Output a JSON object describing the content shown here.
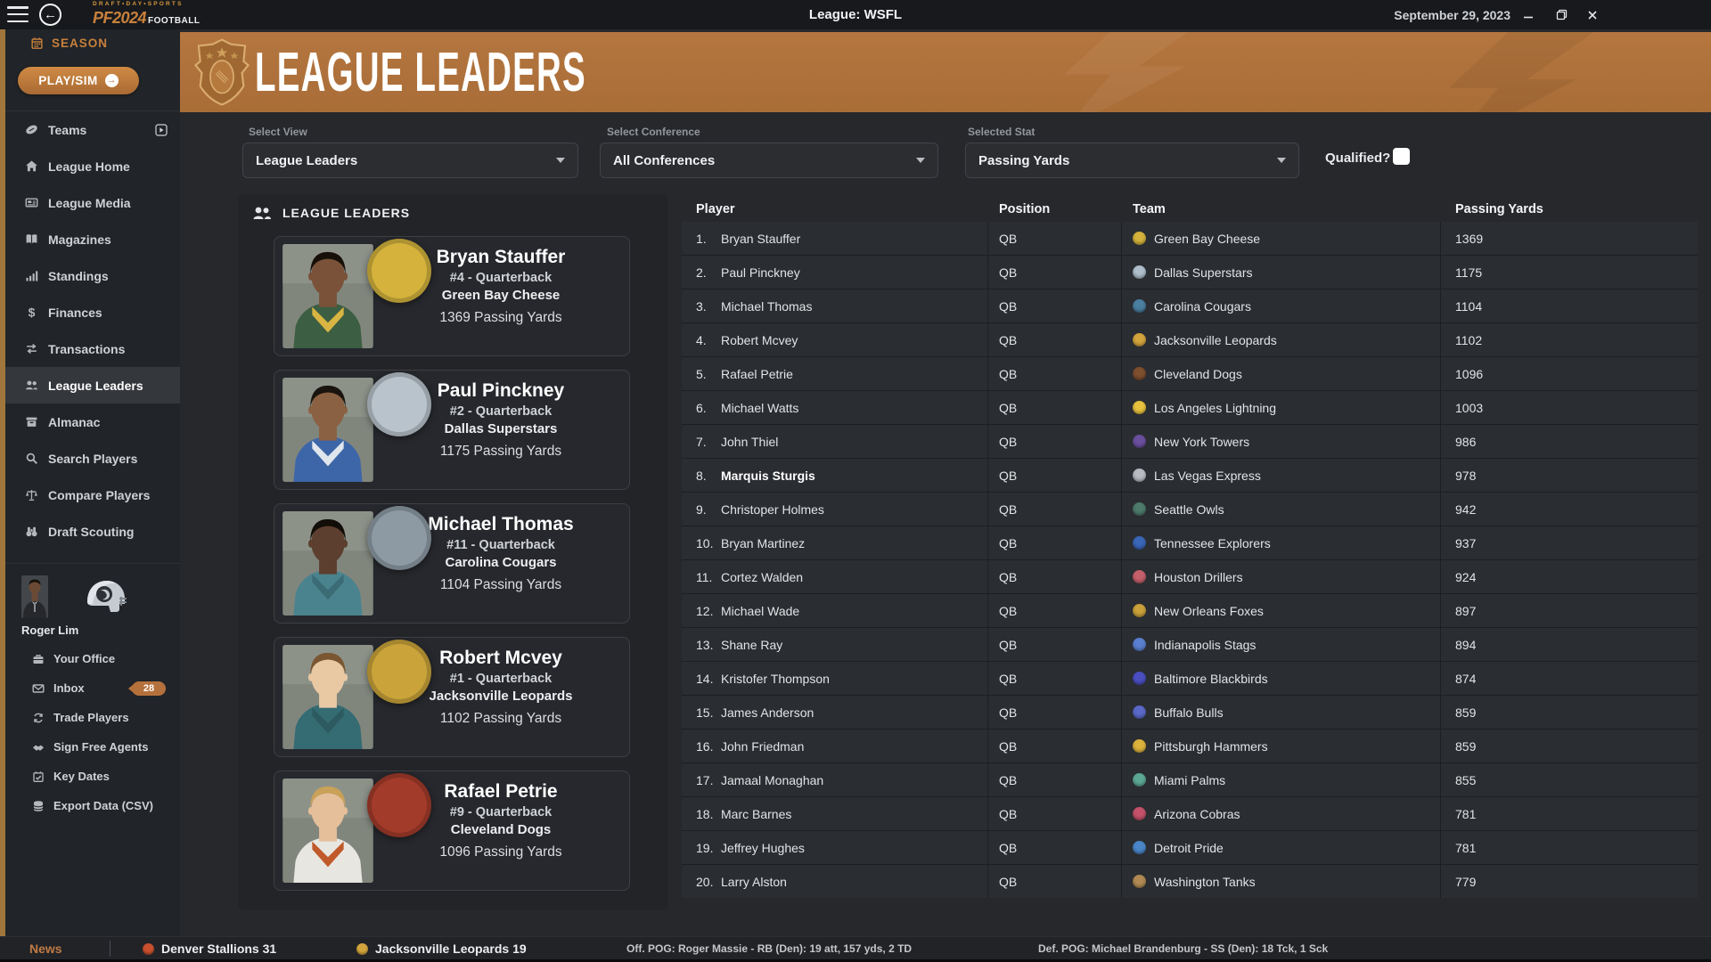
{
  "window": {
    "title": "League: WSFL",
    "date": "September 29, 2023",
    "logo_top": "DRAFT•DAY•SPORTS",
    "logo_main": "PF2024",
    "logo_sub": "FOOTBALL"
  },
  "sidebar": {
    "season_label": "SEASON",
    "play_label": "PLAY/SIM",
    "nav": [
      {
        "icon": "football",
        "label": "Teams"
      },
      {
        "icon": "home",
        "label": "League Home"
      },
      {
        "icon": "news-card",
        "label": "League Media"
      },
      {
        "icon": "book",
        "label": "Magazines"
      },
      {
        "icon": "bar-chart",
        "label": "Standings"
      },
      {
        "icon": "dollar",
        "label": "Finances"
      },
      {
        "icon": "swap-arrows",
        "label": "Transactions"
      },
      {
        "icon": "people",
        "label": "League Leaders"
      },
      {
        "icon": "archive",
        "label": "Almanac"
      },
      {
        "icon": "magnifier",
        "label": "Search Players"
      },
      {
        "icon": "scale",
        "label": "Compare Players"
      },
      {
        "icon": "binoculars",
        "label": "Draft Scouting"
      }
    ],
    "user_name": "Roger Lim",
    "office": [
      {
        "icon": "briefcase",
        "label": "Your Office"
      },
      {
        "icon": "envelope",
        "label": "Inbox",
        "badge": "28"
      },
      {
        "icon": "cycle-arrows",
        "label": "Trade Players"
      },
      {
        "icon": "handshake",
        "label": "Sign Free Agents"
      },
      {
        "icon": "calendar-check",
        "label": "Key Dates"
      },
      {
        "icon": "database",
        "label": "Export Data (CSV)"
      }
    ]
  },
  "banner": {
    "title": "LEAGUE LEADERS"
  },
  "filters": {
    "view_label": "Select View",
    "view_value": "League Leaders",
    "conference_label": "Select Conference",
    "conference_value": "All Conferences",
    "stat_label": "Selected Stat",
    "stat_value": "Passing Yards",
    "qualified_label": "Qualified?",
    "qualified_checked": false
  },
  "leaders_panel": {
    "title": "LEAGUE LEADERS",
    "cards": [
      {
        "name": "Bryan Stauffer",
        "detail": "#4 - Quarterback",
        "team": "Green Bay Cheese",
        "stat": "1369 Passing Yards",
        "logo_color": "#d4b23c",
        "skin": "#7a5239",
        "hair": "#161009",
        "jersey": "#3c5e42",
        "accent": "#d8b542"
      },
      {
        "name": "Paul Pinckney",
        "detail": "#2 - Quarterback",
        "team": "Dallas Superstars",
        "stat": "1175 Passing Yards",
        "logo_color": "#b9c3cc",
        "skin": "#8a6142",
        "hair": "#1a140e",
        "jersey": "#3d66a8",
        "accent": "#dfe6ec"
      },
      {
        "name": "Michael Thomas",
        "detail": "#11 - Quarterback",
        "team": "Carolina Cougars",
        "stat": "1104 Passing Yards",
        "logo_color": "#8d9aa4",
        "skin": "#5c3f2e",
        "hair": "#130d08",
        "jersey": "#4a838e",
        "accent": "#3b6c75"
      },
      {
        "name": "Robert Mcvey",
        "detail": "#1 - Quarterback",
        "team": "Jacksonville Leopards",
        "stat": "1102 Passing Yards",
        "logo_color": "#caa43a",
        "skin": "#e9c9a4",
        "hair": "#7a5632",
        "jersey": "#356b72",
        "accent": "#2c5a60"
      },
      {
        "name": "Rafael Petrie",
        "detail": "#9 - Quarterback",
        "team": "Cleveland Dogs",
        "stat": "1096 Passing Yards",
        "logo_color": "#a33b2a",
        "skin": "#e5bf9a",
        "hair": "#c9a158",
        "jersey": "#e8e6e0",
        "accent": "#c05a2a"
      }
    ]
  },
  "table": {
    "columns": [
      "Player",
      "Position",
      "Team",
      "Passing Yards"
    ],
    "rows": [
      {
        "rank": "1.",
        "player": "Bryan Stauffer",
        "pos": "QB",
        "team": "Green Bay Cheese",
        "team_color": "#d4b23c",
        "value": "1369"
      },
      {
        "rank": "2.",
        "player": "Paul Pinckney",
        "pos": "QB",
        "team": "Dallas Superstars",
        "team_color": "#aebecb",
        "value": "1175"
      },
      {
        "rank": "3.",
        "player": "Michael Thomas",
        "pos": "QB",
        "team": "Carolina Cougars",
        "team_color": "#4b7fa0",
        "value": "1104"
      },
      {
        "rank": "4.",
        "player": "Robert Mcvey",
        "pos": "QB",
        "team": "Jacksonville Leopards",
        "team_color": "#d2a43c",
        "value": "1102"
      },
      {
        "rank": "5.",
        "player": "Rafael Petrie",
        "pos": "QB",
        "team": "Cleveland Dogs",
        "team_color": "#7d4f2e",
        "value": "1096"
      },
      {
        "rank": "6.",
        "player": "Michael Watts",
        "pos": "QB",
        "team": "Los Angeles Lightning",
        "team_color": "#e8c23e",
        "value": "1003"
      },
      {
        "rank": "7.",
        "player": "John Thiel",
        "pos": "QB",
        "team": "New York Towers",
        "team_color": "#6a4f9e",
        "value": "986"
      },
      {
        "rank": "8.",
        "player": "Marquis Sturgis",
        "pos": "QB",
        "team": "Las Vegas Express",
        "team_color": "#b8bcc2",
        "value": "978",
        "bold": true
      },
      {
        "rank": "9.",
        "player": "Christoper Holmes",
        "pos": "QB",
        "team": "Seattle Owls",
        "team_color": "#4d7a6a",
        "value": "942"
      },
      {
        "rank": "10.",
        "player": "Bryan Martinez",
        "pos": "QB",
        "team": "Tennessee Explorers",
        "team_color": "#3a66b8",
        "value": "937"
      },
      {
        "rank": "11.",
        "player": "Cortez Walden",
        "pos": "QB",
        "team": "Houston Drillers",
        "team_color": "#c4606a",
        "value": "924"
      },
      {
        "rank": "12.",
        "player": "Michael Wade",
        "pos": "QB",
        "team": "New Orleans Foxes",
        "team_color": "#c9a03a",
        "value": "897"
      },
      {
        "rank": "13.",
        "player": "Shane Ray",
        "pos": "QB",
        "team": "Indianapolis Stags",
        "team_color": "#5b7fd0",
        "value": "894"
      },
      {
        "rank": "14.",
        "player": "Kristofer Thompson",
        "pos": "QB",
        "team": "Baltimore Blackbirds",
        "team_color": "#4a4fc0",
        "value": "874"
      },
      {
        "rank": "15.",
        "player": "James Anderson",
        "pos": "QB",
        "team": "Buffalo Bulls",
        "team_color": "#5a68c8",
        "value": "859"
      },
      {
        "rank": "16.",
        "player": "John Friedman",
        "pos": "QB",
        "team": "Pittsburgh Hammers",
        "team_color": "#ddb23c",
        "value": "859"
      },
      {
        "rank": "17.",
        "player": "Jamaal Monaghan",
        "pos": "QB",
        "team": "Miami Palms",
        "team_color": "#5da895",
        "value": "855"
      },
      {
        "rank": "18.",
        "player": "Marc Barnes",
        "pos": "QB",
        "team": "Arizona Cobras",
        "team_color": "#c4526a",
        "value": "781"
      },
      {
        "rank": "19.",
        "player": "Jeffrey Hughes",
        "pos": "QB",
        "team": "Detroit Pride",
        "team_color": "#4a86c8",
        "value": "781"
      },
      {
        "rank": "20.",
        "player": "Larry Alston",
        "pos": "QB",
        "team": "Washington Tanks",
        "team_color": "#b08a52",
        "value": "779"
      }
    ]
  },
  "ticker": {
    "news_label": "News",
    "scores": [
      {
        "text": "Denver Stallions 31",
        "color": "#c8502e"
      },
      {
        "text": "Jacksonville Leopards 19",
        "color": "#d2a43c"
      }
    ],
    "notes": [
      {
        "text": "Off. POG: Roger Massie - RB (Den): 19 att, 157 yds, 2 TD"
      },
      {
        "text": "Def. POG: Michael Brandenburg - SS (Den): 18 Tck, 1 Sck"
      }
    ]
  }
}
